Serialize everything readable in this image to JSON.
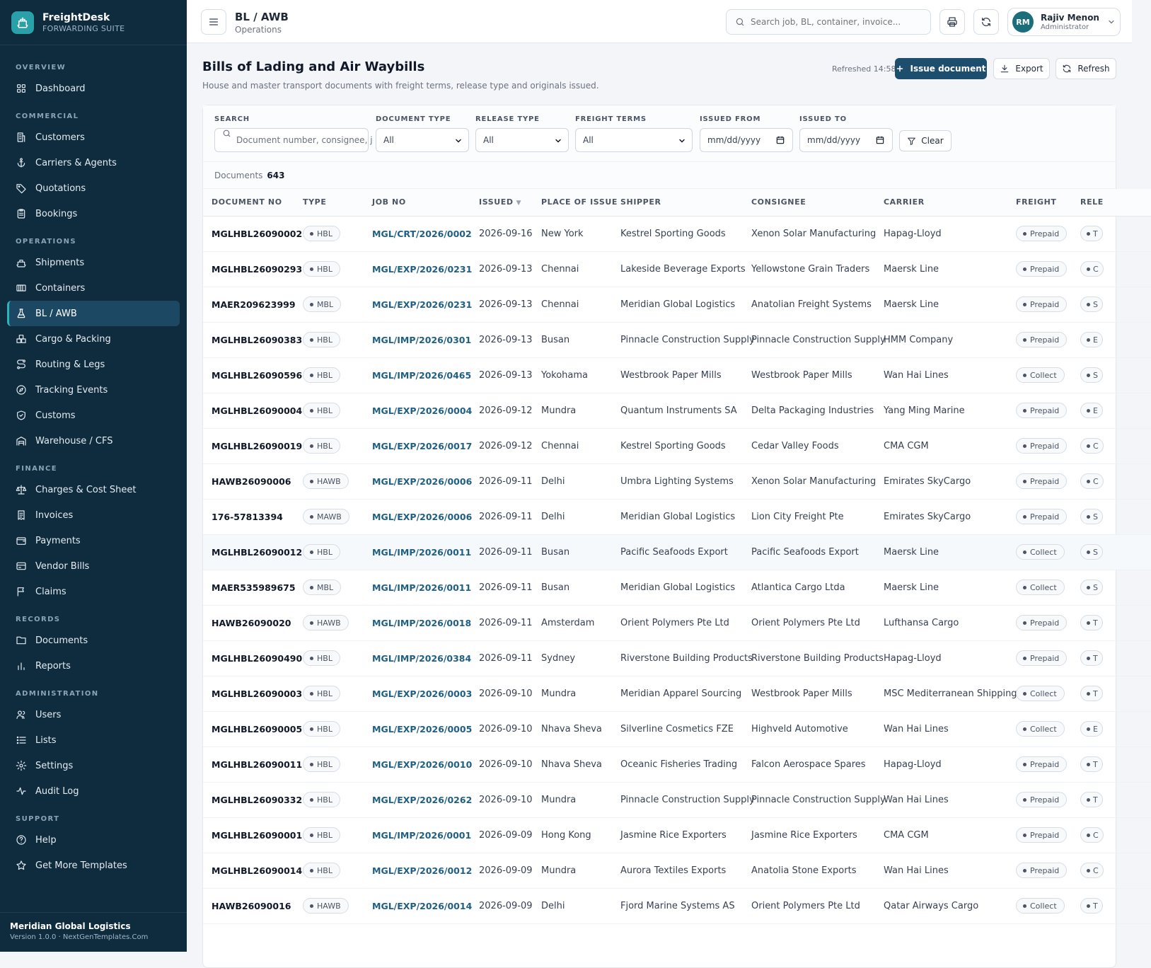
{
  "brand": {
    "name": "FreightDesk",
    "subtitle": "FORWARDING SUITE"
  },
  "sidebar": {
    "sections": [
      {
        "title": "OVERVIEW",
        "items": [
          {
            "label": "Dashboard",
            "icon": "grid-icon"
          }
        ]
      },
      {
        "title": "COMMERCIAL",
        "items": [
          {
            "label": "Customers",
            "icon": "building-icon"
          },
          {
            "label": "Carriers & Agents",
            "icon": "anchor-icon"
          },
          {
            "label": "Quotations",
            "icon": "tag-icon"
          },
          {
            "label": "Bookings",
            "icon": "clipboard-icon"
          }
        ]
      },
      {
        "title": "OPERATIONS",
        "items": [
          {
            "label": "Shipments",
            "icon": "ship-icon"
          },
          {
            "label": "Containers",
            "icon": "container-icon"
          },
          {
            "label": "BL / AWB",
            "icon": "flask-icon",
            "active": true
          },
          {
            "label": "Cargo & Packing",
            "icon": "boxes-icon"
          },
          {
            "label": "Routing & Legs",
            "icon": "route-icon"
          },
          {
            "label": "Tracking Events",
            "icon": "compass-icon"
          },
          {
            "label": "Customs",
            "icon": "shield-icon"
          },
          {
            "label": "Warehouse / CFS",
            "icon": "warehouse-icon"
          }
        ]
      },
      {
        "title": "FINANCE",
        "items": [
          {
            "label": "Charges & Cost Sheet",
            "icon": "scale-icon"
          },
          {
            "label": "Invoices",
            "icon": "receipt-icon"
          },
          {
            "label": "Payments",
            "icon": "wallet-icon"
          },
          {
            "label": "Vendor Bills",
            "icon": "card-icon"
          },
          {
            "label": "Claims",
            "icon": "flag-icon"
          }
        ]
      },
      {
        "title": "RECORDS",
        "items": [
          {
            "label": "Documents",
            "icon": "folder-icon"
          },
          {
            "label": "Reports",
            "icon": "bar-chart-icon"
          }
        ]
      },
      {
        "title": "ADMINISTRATION",
        "items": [
          {
            "label": "Users",
            "icon": "users-icon"
          },
          {
            "label": "Lists",
            "icon": "list-icon"
          },
          {
            "label": "Settings",
            "icon": "gear-icon"
          },
          {
            "label": "Audit Log",
            "icon": "activity-icon"
          }
        ]
      },
      {
        "title": "SUPPORT",
        "items": [
          {
            "label": "Help",
            "icon": "help-icon"
          },
          {
            "label": "Get More Templates",
            "icon": "star-icon"
          }
        ]
      }
    ],
    "footer": {
      "org": "Meridian Global Logistics",
      "version": "Version 1.0.0 · NextGenTemplates.Com"
    }
  },
  "topbar": {
    "title": "BL / AWB",
    "subtitle": "Operations",
    "search_placeholder": "Search job, BL, container, invoice...",
    "user": {
      "initials": "RM",
      "name": "Rajiv Menon",
      "role": "Administrator"
    }
  },
  "page": {
    "title": "Bills of Lading and Air Waybills",
    "subtitle": "House and master transport documents with freight terms, release type and originals issued.",
    "refreshed": "Refreshed 14:58",
    "issue_label": "Issue document",
    "export_label": "Export",
    "refresh_label": "Refresh"
  },
  "filters": {
    "search_label": "SEARCH",
    "search_placeholder": "Document number, consignee, j",
    "doc_type_label": "DOCUMENT TYPE",
    "doc_type_value": "All",
    "release_type_label": "RELEASE TYPE",
    "release_type_value": "All",
    "freight_terms_label": "FREIGHT TERMS",
    "freight_terms_value": "All",
    "issued_from_label": "ISSUED FROM",
    "issued_from_value": "mm/dd/yyyy",
    "issued_to_label": "ISSUED TO",
    "issued_to_value": "mm/dd/yyyy",
    "clear_label": "Clear"
  },
  "count": {
    "label": "Documents",
    "value": "643"
  },
  "table": {
    "columns": [
      "DOCUMENT NO",
      "TYPE",
      "JOB NO",
      "ISSUED",
      "PLACE OF ISSUE",
      "SHIPPER",
      "CONSIGNEE",
      "CARRIER",
      "FREIGHT",
      "RELE"
    ],
    "sort_column": "ISSUED",
    "rows": [
      [
        "MGLHBL26090002",
        "HBL",
        "MGL/CRT/2026/0002",
        "2026-09-16",
        "New York",
        "Kestrel Sporting Goods",
        "Xenon Solar Manufacturing",
        "Hapag-Lloyd",
        "Prepaid",
        "T"
      ],
      [
        "MGLHBL26090293",
        "HBL",
        "MGL/EXP/2026/0231",
        "2026-09-13",
        "Chennai",
        "Lakeside Beverage Exports",
        "Yellowstone Grain Traders",
        "Maersk Line",
        "Prepaid",
        "C"
      ],
      [
        "MAER209623999",
        "MBL",
        "MGL/EXP/2026/0231",
        "2026-09-13",
        "Chennai",
        "Meridian Global Logistics",
        "Anatolian Freight Systems",
        "Maersk Line",
        "Prepaid",
        "S"
      ],
      [
        "MGLHBL26090383",
        "HBL",
        "MGL/IMP/2026/0301",
        "2026-09-13",
        "Busan",
        "Pinnacle Construction Supply",
        "Pinnacle Construction Supply",
        "HMM Company",
        "Prepaid",
        "E"
      ],
      [
        "MGLHBL26090596",
        "HBL",
        "MGL/IMP/2026/0465",
        "2026-09-13",
        "Yokohama",
        "Westbrook Paper Mills",
        "Westbrook Paper Mills",
        "Wan Hai Lines",
        "Collect",
        "S"
      ],
      [
        "MGLHBL26090004",
        "HBL",
        "MGL/EXP/2026/0004",
        "2026-09-12",
        "Mundra",
        "Quantum Instruments SA",
        "Delta Packaging Industries",
        "Yang Ming Marine",
        "Prepaid",
        "E"
      ],
      [
        "MGLHBL26090019",
        "HBL",
        "MGL/EXP/2026/0017",
        "2026-09-12",
        "Chennai",
        "Kestrel Sporting Goods",
        "Cedar Valley Foods",
        "CMA CGM",
        "Prepaid",
        "C"
      ],
      [
        "HAWB26090006",
        "HAWB",
        "MGL/EXP/2026/0006",
        "2026-09-11",
        "Delhi",
        "Umbra Lighting Systems",
        "Xenon Solar Manufacturing",
        "Emirates SkyCargo",
        "Prepaid",
        "C"
      ],
      [
        "176-57813394",
        "MAWB",
        "MGL/EXP/2026/0006",
        "2026-09-11",
        "Delhi",
        "Meridian Global Logistics",
        "Lion City Freight Pte",
        "Emirates SkyCargo",
        "Prepaid",
        "S"
      ],
      [
        "MGLHBL26090012",
        "HBL",
        "MGL/IMP/2026/0011",
        "2026-09-11",
        "Busan",
        "Pacific Seafoods Export",
        "Pacific Seafoods Export",
        "Maersk Line",
        "Collect",
        "S"
      ],
      [
        "MAER535989675",
        "MBL",
        "MGL/IMP/2026/0011",
        "2026-09-11",
        "Busan",
        "Meridian Global Logistics",
        "Atlantica Cargo Ltda",
        "Maersk Line",
        "Collect",
        "S"
      ],
      [
        "HAWB26090020",
        "HAWB",
        "MGL/IMP/2026/0018",
        "2026-09-11",
        "Amsterdam",
        "Orient Polymers Pte Ltd",
        "Orient Polymers Pte Ltd",
        "Lufthansa Cargo",
        "Prepaid",
        "T"
      ],
      [
        "MGLHBL26090490",
        "HBL",
        "MGL/IMP/2026/0384",
        "2026-09-11",
        "Sydney",
        "Riverstone Building Products",
        "Riverstone Building Products",
        "Hapag-Lloyd",
        "Prepaid",
        "T"
      ],
      [
        "MGLHBL26090003",
        "HBL",
        "MGL/EXP/2026/0003",
        "2026-09-10",
        "Mundra",
        "Meridian Apparel Sourcing",
        "Westbrook Paper Mills",
        "MSC Mediterranean Shipping",
        "Collect",
        "T"
      ],
      [
        "MGLHBL26090005",
        "HBL",
        "MGL/EXP/2026/0005",
        "2026-09-10",
        "Nhava Sheva",
        "Silverline Cosmetics FZE",
        "Highveld Automotive",
        "Wan Hai Lines",
        "Collect",
        "E"
      ],
      [
        "MGLHBL26090011",
        "HBL",
        "MGL/EXP/2026/0010",
        "2026-09-10",
        "Nhava Sheva",
        "Oceanic Fisheries Trading",
        "Falcon Aerospace Spares",
        "Hapag-Lloyd",
        "Prepaid",
        "T"
      ],
      [
        "MGLHBL26090332",
        "HBL",
        "MGL/EXP/2026/0262",
        "2026-09-10",
        "Mundra",
        "Pinnacle Construction Supply",
        "Pinnacle Construction Supply",
        "Wan Hai Lines",
        "Prepaid",
        "T"
      ],
      [
        "MGLHBL26090001",
        "HBL",
        "MGL/IMP/2026/0001",
        "2026-09-09",
        "Hong Kong",
        "Jasmine Rice Exporters",
        "Jasmine Rice Exporters",
        "CMA CGM",
        "Prepaid",
        "C"
      ],
      [
        "MGLHBL26090014",
        "HBL",
        "MGL/EXP/2026/0012",
        "2026-09-09",
        "Mundra",
        "Aurora Textiles Exports",
        "Anatolia Stone Exports",
        "Wan Hai Lines",
        "Prepaid",
        "C"
      ],
      [
        "HAWB26090016",
        "HAWB",
        "MGL/EXP/2026/0014",
        "2026-09-09",
        "Delhi",
        "Fjord Marine Systems AS",
        "Orient Polymers Pte Ltd",
        "Qatar Airways Cargo",
        "Collect",
        "T"
      ]
    ]
  }
}
